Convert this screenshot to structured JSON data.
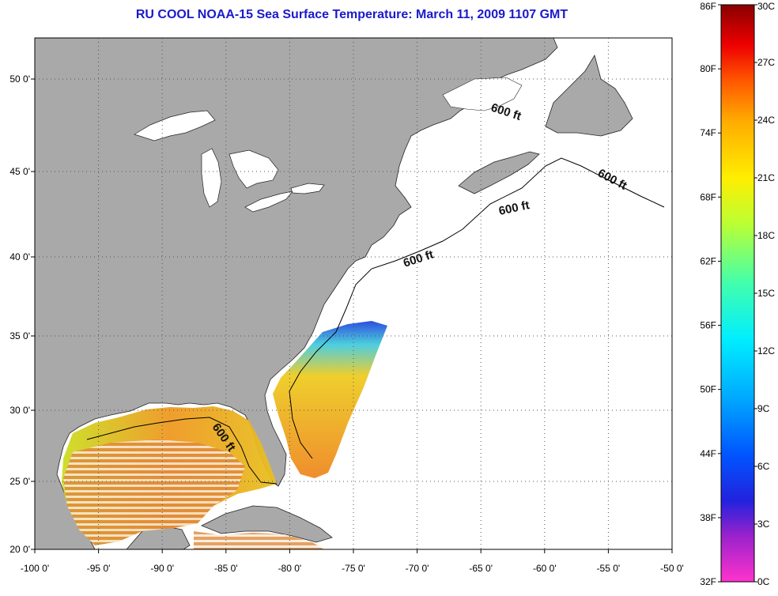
{
  "title": "RU COOL  NOAA-15  Sea Surface Temperature:  March 11, 2009 1107 GMT",
  "map": {
    "lon_ticks": [
      "-100 0'",
      "-95 0'",
      "-90 0'",
      "-85 0'",
      "-80 0'",
      "-75 0'",
      "-70 0'",
      "-65 0'",
      "-60 0'",
      "-55 0'",
      "-50 0'"
    ],
    "lat_ticks": [
      "50 0'",
      "45 0'",
      "40 0'",
      "35 0'",
      "30 0'",
      "25 0'",
      "20 0'"
    ],
    "contour_label": "600 ft",
    "colors": {
      "land": "#a9a9a9",
      "water": "#ffffff",
      "grid": "#555555"
    }
  },
  "colorbar": {
    "fahrenheit": [
      "86F",
      "80F",
      "74F",
      "68F",
      "62F",
      "56F",
      "50F",
      "44F",
      "38F",
      "32F"
    ],
    "celsius": [
      "30C",
      "27C",
      "24C",
      "21C",
      "18C",
      "15C",
      "12C",
      "9C",
      "6C",
      "3C",
      "0C"
    ],
    "range_c": [
      0,
      30
    ],
    "range_f": [
      32,
      86
    ]
  }
}
